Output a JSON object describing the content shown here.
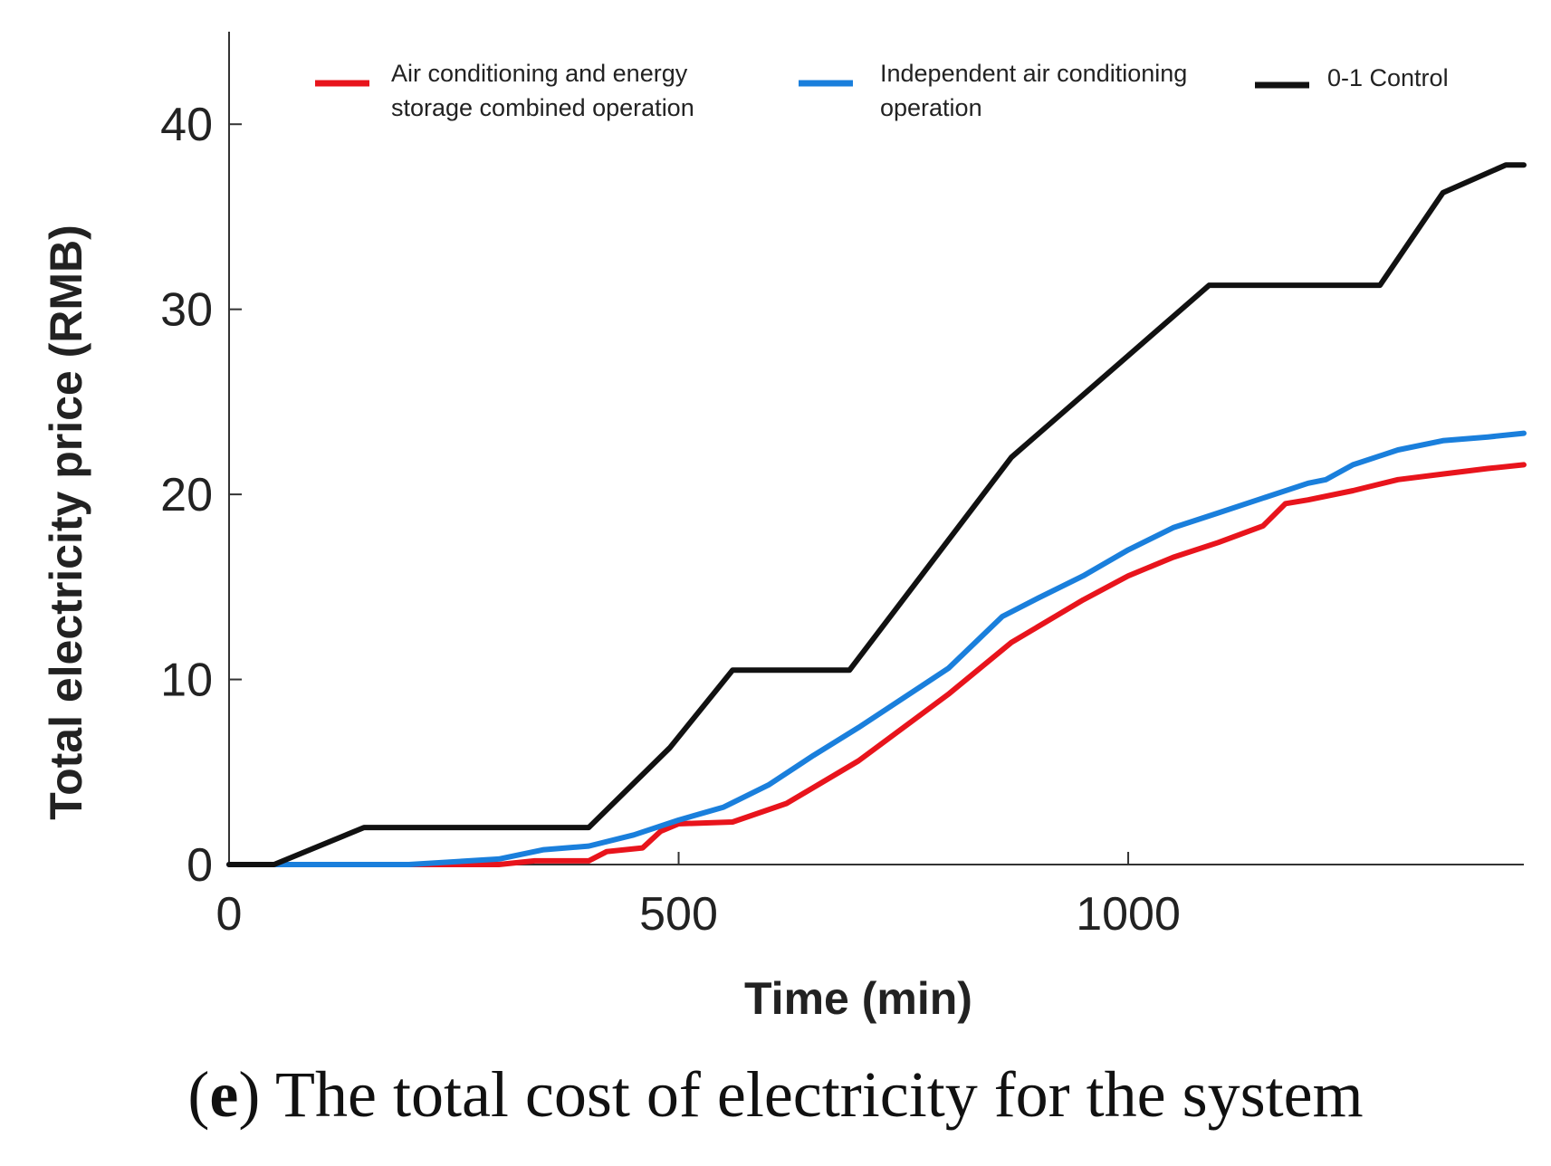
{
  "chart_data": {
    "type": "line",
    "xlabel": "Time (min)",
    "ylabel": "Total electricity price (RMB)",
    "xlim": [
      0,
      1440
    ],
    "ylim": [
      0,
      45
    ],
    "x_ticks": [
      "0",
      "500",
      "1000"
    ],
    "y_ticks": [
      "0",
      "10",
      "20",
      "30",
      "40"
    ],
    "legend_position": "top",
    "series": [
      {
        "name": "Air conditioning and energy storage combined operation",
        "legend_lines": [
          "Air conditioning and energy",
          "storage combined operation"
        ],
        "color": "#e8141c",
        "x": [
          0,
          300,
          340,
          400,
          420,
          460,
          480,
          500,
          560,
          620,
          700,
          800,
          870,
          950,
          1000,
          1050,
          1100,
          1150,
          1175,
          1200,
          1250,
          1300,
          1350,
          1400,
          1440
        ],
        "y": [
          0,
          0,
          0.2,
          0.2,
          0.7,
          0.9,
          1.8,
          2.2,
          2.3,
          3.3,
          5.6,
          9.2,
          12.0,
          14.3,
          15.6,
          16.6,
          17.4,
          18.3,
          19.5,
          19.7,
          20.2,
          20.8,
          21.1,
          21.4,
          21.6
        ]
      },
      {
        "name": "Independent air conditioning operation",
        "legend_lines": [
          "Independent air conditioning",
          "operation"
        ],
        "color": "#1a7fdc",
        "x": [
          0,
          200,
          300,
          350,
          400,
          450,
          500,
          550,
          600,
          650,
          700,
          800,
          860,
          900,
          950,
          1000,
          1050,
          1100,
          1150,
          1200,
          1220,
          1250,
          1300,
          1350,
          1400,
          1440
        ],
        "y": [
          0,
          0,
          0.3,
          0.8,
          1.0,
          1.6,
          2.4,
          3.1,
          4.3,
          5.9,
          7.4,
          10.6,
          13.4,
          14.4,
          15.6,
          17.0,
          18.2,
          19.0,
          19.8,
          20.6,
          20.8,
          21.6,
          22.4,
          22.9,
          23.1,
          23.3
        ]
      },
      {
        "name": "0-1 Control",
        "legend_lines": [
          "0-1 Control"
        ],
        "color": "#111111",
        "x": [
          0,
          50,
          150,
          250,
          400,
          490,
          560,
          690,
          870,
          1090,
          1280,
          1350,
          1420,
          1440
        ],
        "y": [
          0,
          0,
          2.0,
          2.0,
          2.0,
          6.3,
          10.5,
          10.5,
          22.0,
          31.3,
          31.3,
          36.3,
          37.8,
          37.8
        ]
      }
    ]
  },
  "caption": {
    "label": "e",
    "text": " The total cost of electricity for the system"
  }
}
